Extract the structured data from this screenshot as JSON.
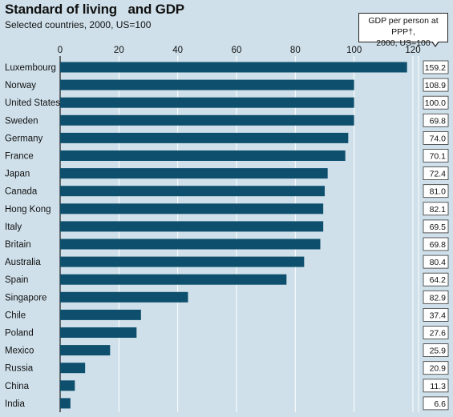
{
  "title": "Standard of living   and GDP",
  "subtitle": "Selected countries, 2000, US=100",
  "callout": {
    "line1": "GDP per person at PPP†,",
    "line2": "2000, US=100"
  },
  "colors": {
    "background": "#cfe0ea",
    "bar": "#0e4f6d",
    "gridline": "#ffffff",
    "value_box": "#ffffff"
  },
  "chart_data": {
    "type": "bar",
    "orientation": "horizontal",
    "title": "Standard of living   and GDP",
    "subtitle": "Selected countries, 2000, US=100",
    "xlim": [
      0,
      120
    ],
    "xticks": [
      0,
      20,
      40,
      60,
      80,
      100,
      120
    ],
    "grid": true,
    "categories": [
      "Luxembourg",
      "Norway",
      "United States",
      "Sweden",
      "Germany",
      "France",
      "Japan",
      "Canada",
      "Hong Kong",
      "Italy",
      "Britain",
      "Australia",
      "Spain",
      "Singapore",
      "Chile",
      "Poland",
      "Mexico",
      "Russia",
      "China",
      "India"
    ],
    "series": [
      {
        "values": [
          118,
          100,
          100,
          100,
          98,
          97,
          91,
          90,
          89.5,
          89.5,
          88.5,
          83,
          77,
          43.5,
          27.5,
          26,
          17,
          8.5,
          5,
          3.5
        ]
      }
    ],
    "gdp_per_person": [
      "159.2",
      "108.9",
      "100.0",
      "69.8",
      "74.0",
      "70.1",
      "72.4",
      "81.0",
      "82.1",
      "69.5",
      "69.8",
      "80.4",
      "64.2",
      "82.9",
      "37.4",
      "27.6",
      "25.9",
      "20.9",
      "11.3",
      "6.6"
    ]
  }
}
